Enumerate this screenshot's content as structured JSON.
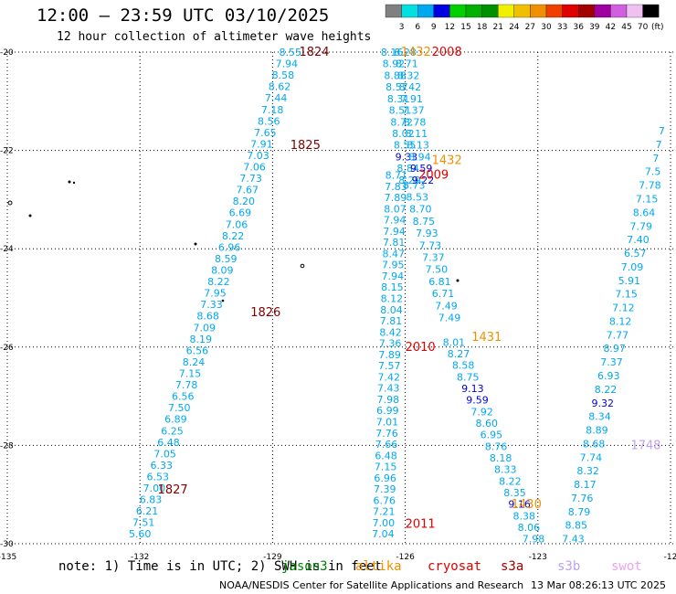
{
  "header": {
    "title": "12:00 — 23:59 UTC 03/10/2025",
    "subtitle": "12 hour collection of altimeter wave heights"
  },
  "legend": {
    "labels": [
      "3",
      "6",
      "9",
      "12",
      "15",
      "18",
      "21",
      "24",
      "27",
      "30",
      "33",
      "36",
      "39",
      "42",
      "45",
      "70"
    ],
    "unit": "(ft)",
    "colors": [
      "#808080",
      "#00e0e0",
      "#00a8f0",
      "#0000e0",
      "#00d000",
      "#00b000",
      "#009000",
      "#f0f000",
      "#f0c000",
      "#f09000",
      "#f04000",
      "#e00000",
      "#a00000",
      "#a000a0",
      "#d060e0",
      "#f0c0f0",
      "#000000"
    ]
  },
  "axes": {
    "lat_labels": [
      "-20",
      "-22",
      "-24",
      "-26",
      "-28",
      "-30"
    ],
    "lon_labels": [
      "-135",
      "-132",
      "-129",
      "-126",
      "-123",
      "-12"
    ]
  },
  "footer": {
    "note": "note:  1) Time is in UTC; 2) SWH is in feet",
    "satellites": [
      {
        "name": "jason3",
        "color": "#008000"
      },
      {
        "name": "altika",
        "color": "#f09000"
      },
      {
        "name": "cryosat",
        "color": "#e00000"
      },
      {
        "name": "s3a",
        "color": "#a00000"
      },
      {
        "name": "s3b",
        "color": "#c0a0f0"
      },
      {
        "name": "swot",
        "color": "#f0a0f0"
      }
    ],
    "credit": "NOAA/NESDIS Center for Satellite Applications and Research",
    "timestamp": "13 Mar 08:26:13 UTC 2025"
  },
  "map_data": {
    "track_labels": [
      {
        "text": "1824",
        "color": "#800000",
        "lon": -128.4,
        "lat": -20.0
      },
      {
        "text": "1825",
        "color": "#800000",
        "lon": -128.6,
        "lat": -21.9
      },
      {
        "text": "1826",
        "color": "#800000",
        "lon": -129.5,
        "lat": -25.3
      },
      {
        "text": "1827",
        "color": "#800000",
        "lon": -131.6,
        "lat": -28.9
      },
      {
        "text": "1432",
        "color": "#f09000",
        "lon": -126.1,
        "lat": -20.0
      },
      {
        "text": "2008",
        "color": "#e00000",
        "lon": -125.4,
        "lat": -20.0
      },
      {
        "text": "1432",
        "color": "#f09000",
        "lon": -125.4,
        "lat": -22.2
      },
      {
        "text": "2009",
        "color": "#e00000",
        "lon": -125.7,
        "lat": -22.5
      },
      {
        "text": "2010",
        "color": "#e00000",
        "lon": -126.0,
        "lat": -26.0
      },
      {
        "text": "1431",
        "color": "#f09000",
        "lon": -124.5,
        "lat": -25.8
      },
      {
        "text": "1430",
        "color": "#f09000",
        "lon": -123.6,
        "lat": -29.2
      },
      {
        "text": "2011",
        "color": "#e00000",
        "lon": -126.0,
        "lat": -29.6
      },
      {
        "text": "1748",
        "color": "#c0a0f0",
        "lon": -120.9,
        "lat": -28.0
      }
    ],
    "tracks": [
      {
        "name": "track-1824",
        "color": "#00a8f0",
        "start": [
          -128.6,
          -20.0
        ],
        "end": [
          -132.0,
          -29.8
        ],
        "values": [
          "8.55",
          "7.94",
          "8.58",
          "8.62",
          "7.44",
          "7.18",
          "8.56",
          "7.65",
          "7.91",
          "7.03",
          "7.06",
          "7.73",
          "7.67",
          "8.20",
          "6.69",
          "7.06",
          "8.22",
          "6.96",
          "8.59",
          "8.09",
          "8.22",
          "7.95",
          "7.33",
          "8.68",
          "7.09",
          "8.19",
          "6.56",
          "8.24",
          "7.15",
          "7.78",
          "6.56",
          "7.50",
          "6.89",
          "6.25",
          "6.48",
          "7.05",
          "6.33",
          "6.53",
          "7.00",
          "6.83",
          "6.21",
          "7.51",
          "5.60"
        ]
      },
      {
        "name": "track-2008",
        "color": "#00a8f0",
        "start": [
          -126.3,
          -20.0
        ],
        "end": [
          -125.9,
          -22.6
        ],
        "values": [
          "8.16",
          "8.92",
          "8.88",
          "8.57",
          "8.31",
          "8.51",
          "8.72",
          "8.02",
          "8.55",
          "9.33",
          "8.84",
          "8.29"
        ]
      },
      {
        "name": "track-1432",
        "color": "#00a8f0",
        "start": [
          -126.0,
          -20.0
        ],
        "end": [
          -125.6,
          -22.6
        ],
        "values": [
          "8.28",
          "8.71",
          "8.32",
          "8.42",
          "7.91",
          "7.37",
          "8.78",
          "8.11",
          "8.13",
          "8.94",
          "9.59",
          "9.22"
        ]
      },
      {
        "name": "track-2009",
        "color": "#00a8f0",
        "start": [
          -126.2,
          -22.5
        ],
        "end": [
          -126.5,
          -29.8
        ],
        "values": [
          "8.71",
          "7.83",
          "7.89",
          "8.07",
          "7.94",
          "7.94",
          "7.81",
          "8.47",
          "7.95",
          "7.94",
          "8.15",
          "8.12",
          "8.04",
          "7.81",
          "8.42",
          "7.36",
          "7.89",
          "7.57",
          "7.42",
          "7.43",
          "7.98",
          "6.99",
          "7.01",
          "7.76",
          "7.66",
          "6.48",
          "7.15",
          "6.96",
          "7.39",
          "6.76",
          "7.21",
          "7.00",
          "7.04"
        ]
      },
      {
        "name": "track-1432b",
        "color": "#00a8f0",
        "start": [
          -125.8,
          -22.7
        ],
        "end": [
          -125.0,
          -25.4
        ],
        "values": [
          "8.73",
          "8.53",
          "8.70",
          "8.75",
          "7.93",
          "7.73",
          "7.37",
          "7.50",
          "6.81",
          "6.71",
          "7.49",
          "7.49"
        ]
      },
      {
        "name": "track-1431",
        "color": "#00a8f0",
        "start": [
          -124.9,
          -25.9
        ],
        "end": [
          -123.1,
          -29.9
        ],
        "values": [
          "8.01",
          "8.27",
          "8.58",
          "8.75",
          "9.13",
          "9.59",
          "7.92",
          "8.60",
          "6.95",
          "8.76",
          "8.18",
          "8.33",
          "8.22",
          "8.35",
          "9.16",
          "8.38",
          "8.06",
          "7.98"
        ]
      },
      {
        "name": "track-1748",
        "color": "#00a8f0",
        "start": [
          -120.2,
          -21.6
        ],
        "end": [
          -122.2,
          -29.9
        ],
        "values": [
          "7",
          "7",
          "7",
          "7.5",
          "7.78",
          "7.15",
          "8.64",
          "7.79",
          "7.40",
          "6.57",
          "7.09",
          "5.91",
          "7.15",
          "7.12",
          "8.12",
          "7.77",
          "8.97",
          "7.37",
          "6.93",
          "8.22",
          "9.32",
          "8.34",
          "8.89",
          "8.68",
          "7.74",
          "8.32",
          "8.17",
          "7.76",
          "8.79",
          "8.85",
          "7.43"
        ]
      }
    ]
  }
}
